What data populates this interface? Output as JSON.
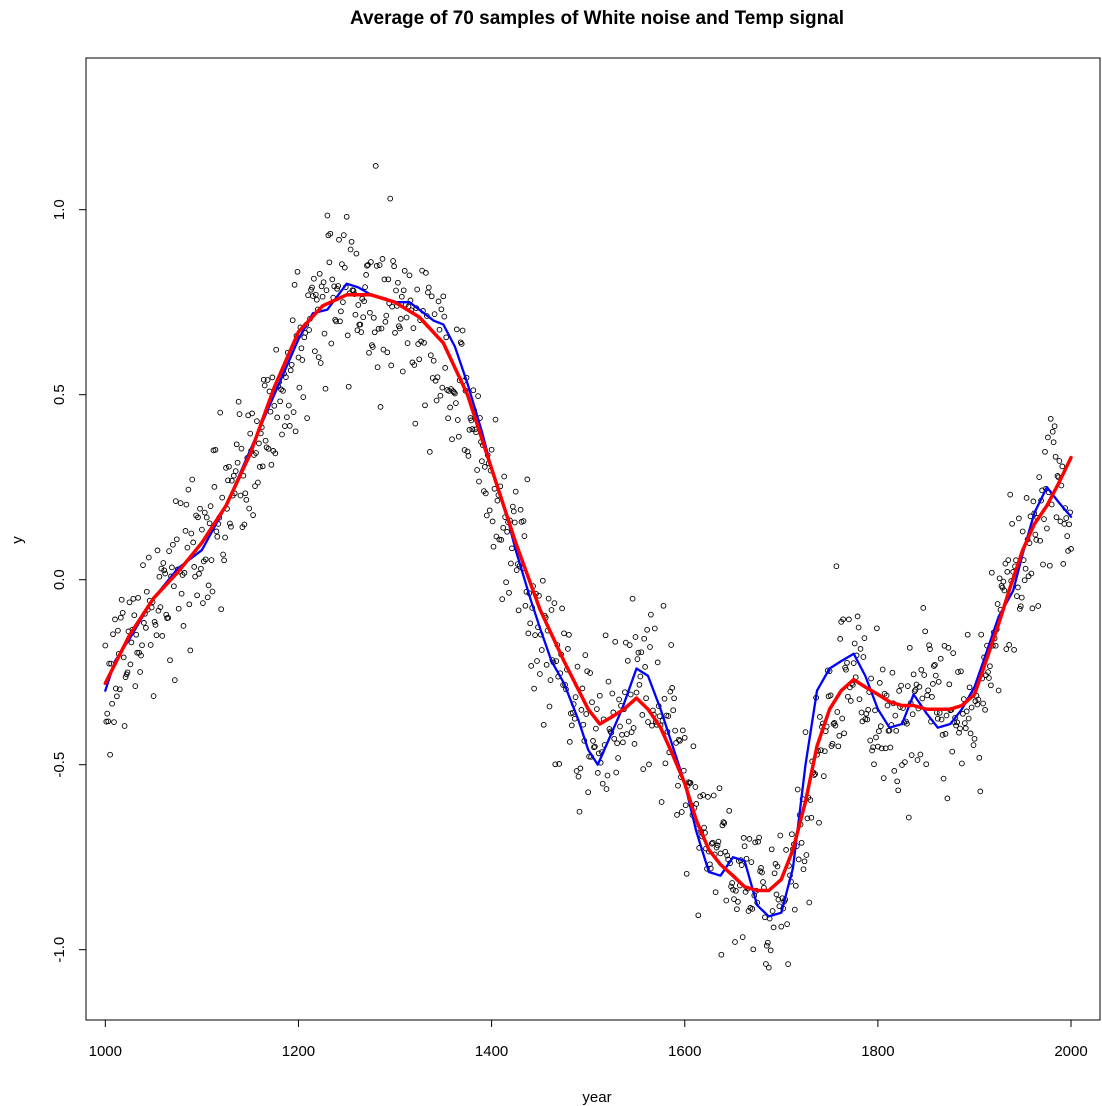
{
  "chart_data": {
    "type": "scatter",
    "title": "Average of 70 samples of White noise and Temp signal",
    "xlabel": "year",
    "ylabel": "y",
    "xlim": [
      980,
      2030
    ],
    "ylim": [
      -1.19,
      1.41
    ],
    "x_ticks": [
      1000,
      1200,
      1400,
      1600,
      1800,
      2000
    ],
    "x_tick_labels": [
      "1000",
      "1200",
      "1400",
      "1600",
      "1800",
      "2000"
    ],
    "y_ticks": [
      -1.0,
      -0.5,
      0.0,
      0.5,
      1.0
    ],
    "y_tick_labels": [
      "-1.0",
      "-0.5",
      "0.0",
      "0.5",
      "1.0"
    ],
    "grid": false,
    "legend": "none",
    "series": [
      {
        "kind": "points",
        "marker": "open-circle",
        "color": "#000000",
        "x_start": 1000,
        "x_end": 2000,
        "x_step": 1,
        "smooth_anchors": {
          "x": [
            1000,
            1050,
            1100,
            1150,
            1200,
            1225,
            1250,
            1275,
            1300,
            1325,
            1350,
            1375,
            1400,
            1425,
            1450,
            1475,
            1500,
            1525,
            1550,
            1575,
            1600,
            1625,
            1650,
            1675,
            1700,
            1725,
            1750,
            1775,
            1800,
            1825,
            1850,
            1875,
            1900,
            1925,
            1950,
            1975,
            2000
          ],
          "y": [
            -0.28,
            -0.08,
            0.09,
            0.31,
            0.62,
            0.75,
            0.79,
            0.77,
            0.74,
            0.7,
            0.6,
            0.46,
            0.27,
            0.07,
            -0.13,
            -0.28,
            -0.43,
            -0.36,
            -0.28,
            -0.33,
            -0.5,
            -0.72,
            -0.77,
            -0.84,
            -0.9,
            -0.7,
            -0.3,
            -0.2,
            -0.35,
            -0.38,
            -0.31,
            -0.4,
            -0.33,
            -0.1,
            0.08,
            0.25,
            0.17
          ]
        },
        "noise_sd": 0.11
      },
      {
        "kind": "line",
        "color": "#0000FF",
        "x": [
          1000,
          1010,
          1025,
          1050,
          1075,
          1100,
          1125,
          1150,
          1175,
          1200,
          1215,
          1230,
          1250,
          1262,
          1275,
          1290,
          1300,
          1315,
          1325,
          1340,
          1350,
          1362,
          1375,
          1390,
          1400,
          1415,
          1425,
          1440,
          1450,
          1462,
          1475,
          1490,
          1500,
          1510,
          1520,
          1535,
          1550,
          1562,
          1575,
          1590,
          1600,
          1612,
          1625,
          1637,
          1650,
          1662,
          1675,
          1687,
          1700,
          1712,
          1725,
          1737,
          1750,
          1762,
          1775,
          1787,
          1800,
          1812,
          1825,
          1837,
          1850,
          1862,
          1875,
          1887,
          1900,
          1912,
          1925,
          1940,
          1950,
          1962,
          1975,
          1987,
          2000
        ],
        "y": [
          -0.3,
          -0.22,
          -0.16,
          -0.05,
          0.03,
          0.08,
          0.2,
          0.35,
          0.5,
          0.65,
          0.72,
          0.73,
          0.8,
          0.79,
          0.77,
          0.76,
          0.75,
          0.75,
          0.73,
          0.7,
          0.69,
          0.63,
          0.53,
          0.4,
          0.3,
          0.18,
          0.08,
          -0.05,
          -0.13,
          -0.22,
          -0.28,
          -0.38,
          -0.46,
          -0.5,
          -0.44,
          -0.35,
          -0.24,
          -0.26,
          -0.35,
          -0.47,
          -0.55,
          -0.68,
          -0.79,
          -0.8,
          -0.75,
          -0.76,
          -0.88,
          -0.91,
          -0.9,
          -0.78,
          -0.5,
          -0.3,
          -0.24,
          -0.22,
          -0.2,
          -0.26,
          -0.35,
          -0.4,
          -0.39,
          -0.31,
          -0.36,
          -0.4,
          -0.39,
          -0.35,
          -0.29,
          -0.2,
          -0.1,
          -0.03,
          0.07,
          0.18,
          0.25,
          0.21,
          0.17
        ]
      },
      {
        "kind": "line",
        "color": "#FF0000",
        "x": [
          1000,
          1025,
          1050,
          1075,
          1100,
          1125,
          1150,
          1175,
          1200,
          1225,
          1250,
          1275,
          1300,
          1325,
          1350,
          1375,
          1400,
          1425,
          1450,
          1475,
          1500,
          1512,
          1525,
          1537,
          1550,
          1562,
          1575,
          1587,
          1600,
          1612,
          1625,
          1637,
          1650,
          1662,
          1675,
          1687,
          1700,
          1712,
          1725,
          1737,
          1750,
          1762,
          1775,
          1787,
          1800,
          1812,
          1825,
          1837,
          1850,
          1862,
          1875,
          1887,
          1900,
          1912,
          1925,
          1937,
          1950,
          1962,
          1975,
          1987,
          2000
        ],
        "y": [
          -0.28,
          -0.15,
          -0.05,
          0.02,
          0.1,
          0.2,
          0.34,
          0.52,
          0.67,
          0.74,
          0.77,
          0.77,
          0.75,
          0.71,
          0.64,
          0.5,
          0.3,
          0.1,
          -0.08,
          -0.22,
          -0.35,
          -0.39,
          -0.37,
          -0.35,
          -0.32,
          -0.35,
          -0.4,
          -0.47,
          -0.55,
          -0.65,
          -0.73,
          -0.77,
          -0.8,
          -0.83,
          -0.84,
          -0.84,
          -0.81,
          -0.73,
          -0.6,
          -0.45,
          -0.35,
          -0.3,
          -0.27,
          -0.29,
          -0.31,
          -0.33,
          -0.34,
          -0.34,
          -0.35,
          -0.35,
          -0.35,
          -0.34,
          -0.31,
          -0.22,
          -0.12,
          -0.02,
          0.08,
          0.15,
          0.2,
          0.26,
          0.33
        ]
      }
    ]
  }
}
